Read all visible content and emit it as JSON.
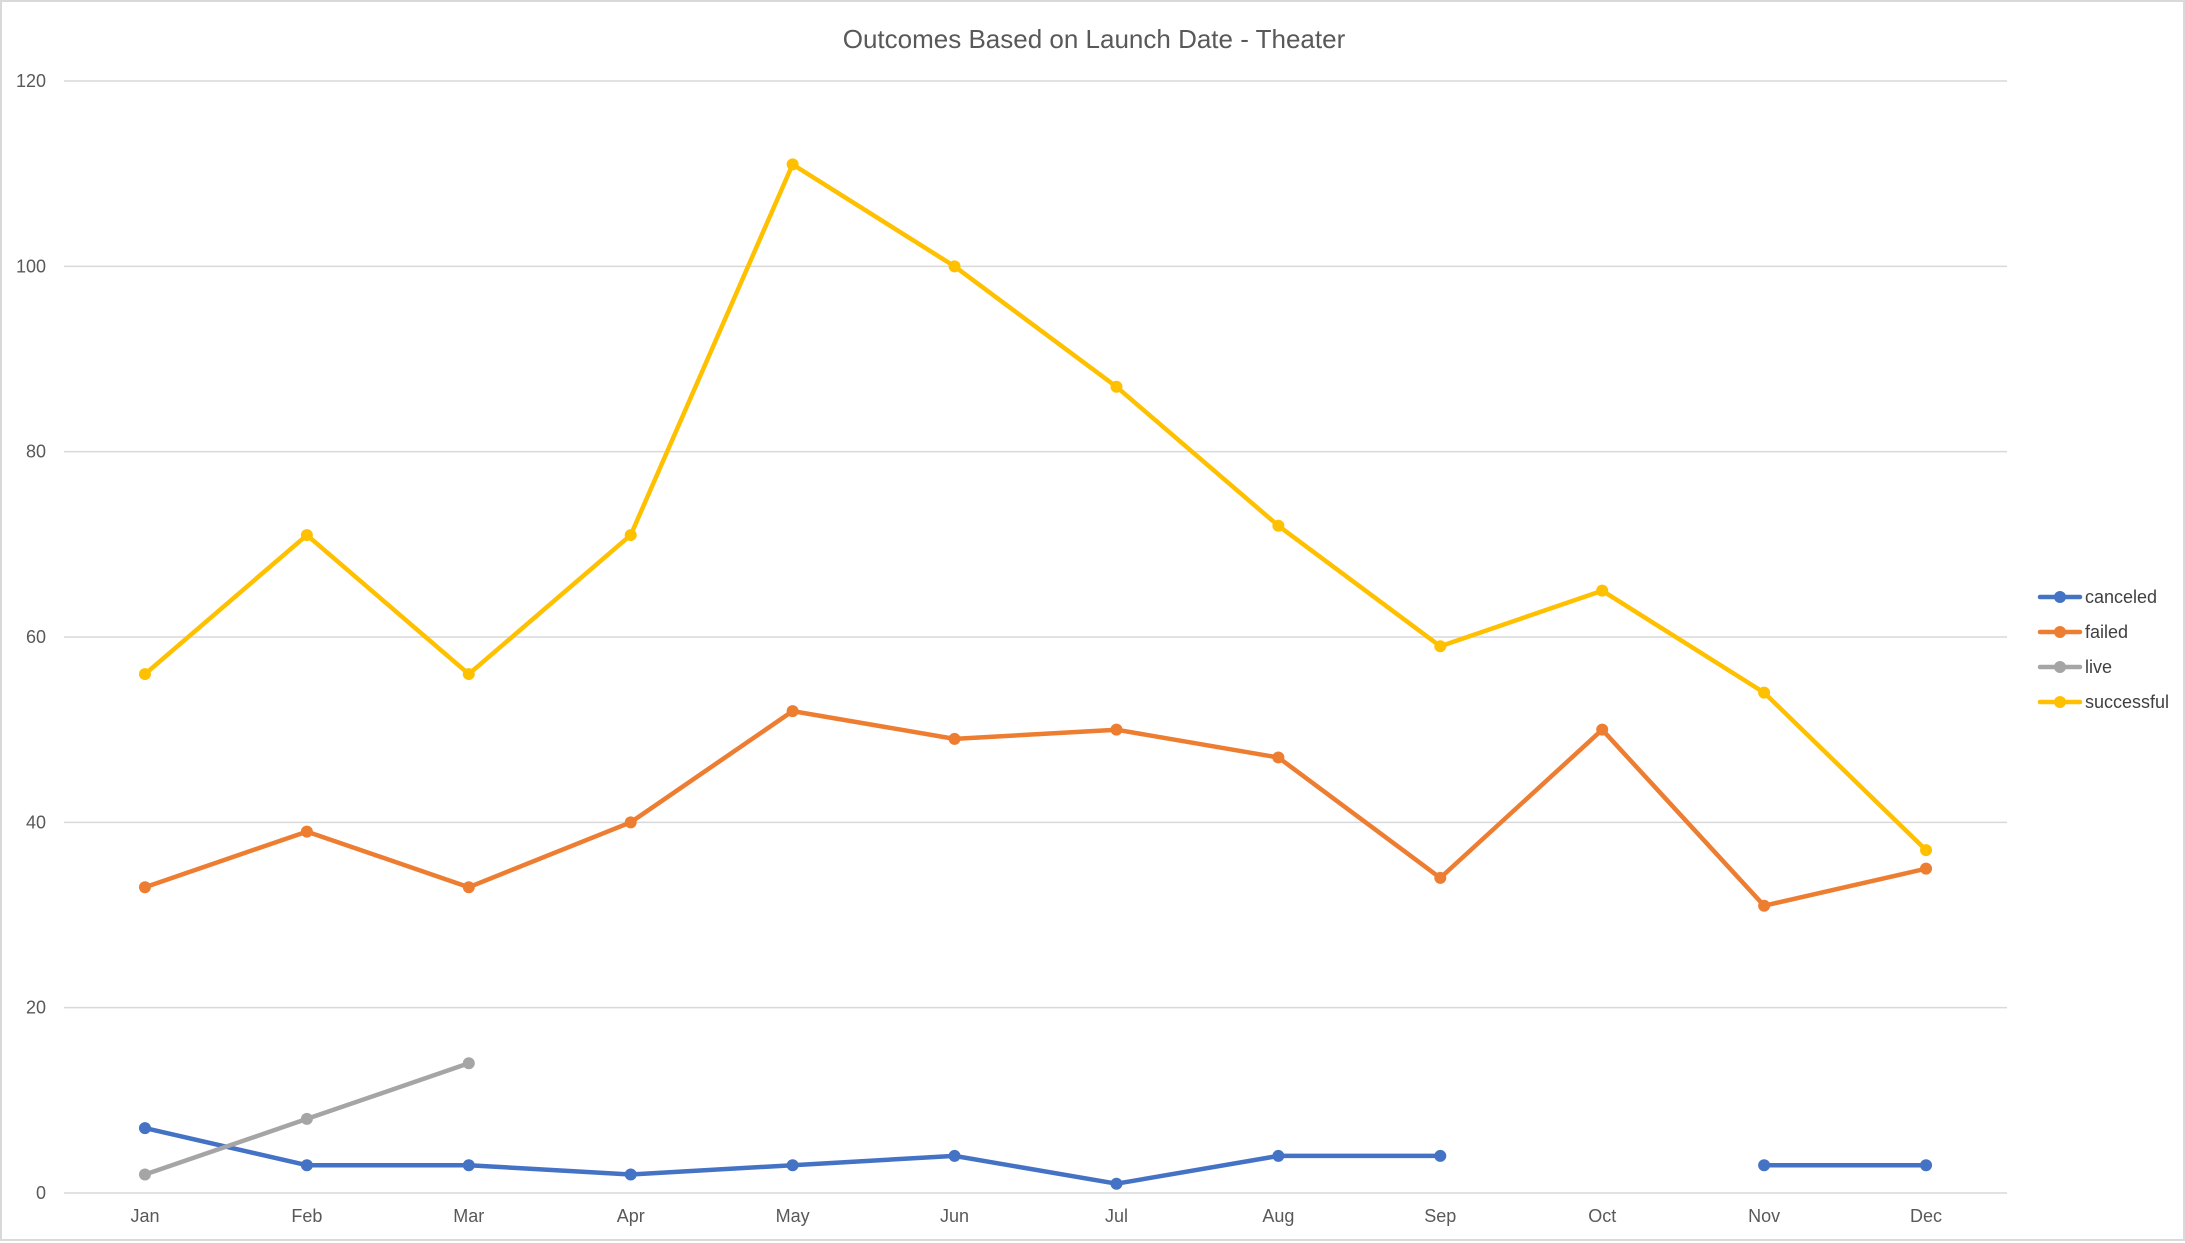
{
  "chart_data": {
    "type": "line",
    "title": "Outcomes Based on Launch Date - Theater",
    "xlabel": "",
    "ylabel": "",
    "categories": [
      "Jan",
      "Feb",
      "Mar",
      "Apr",
      "May",
      "Jun",
      "Jul",
      "Aug",
      "Sep",
      "Oct",
      "Nov",
      "Dec"
    ],
    "ylim": [
      0,
      120
    ],
    "yticks": [
      0,
      20,
      40,
      60,
      80,
      100,
      120
    ],
    "grid": true,
    "legend_position": "right",
    "series": [
      {
        "name": "canceled",
        "color": "#4472c4",
        "values": [
          7,
          3,
          3,
          2,
          3,
          4,
          1,
          4,
          4,
          null,
          3,
          3
        ]
      },
      {
        "name": "failed",
        "color": "#ed7d31",
        "values": [
          33,
          39,
          33,
          40,
          52,
          49,
          50,
          47,
          34,
          50,
          31,
          35
        ]
      },
      {
        "name": "live",
        "color": "#a5a5a5",
        "values": [
          2,
          8,
          14,
          null,
          null,
          null,
          null,
          null,
          null,
          null,
          null,
          null
        ]
      },
      {
        "name": "successful",
        "color": "#ffc000",
        "values": [
          56,
          71,
          56,
          71,
          111,
          100,
          87,
          72,
          59,
          65,
          54,
          37
        ]
      }
    ]
  }
}
